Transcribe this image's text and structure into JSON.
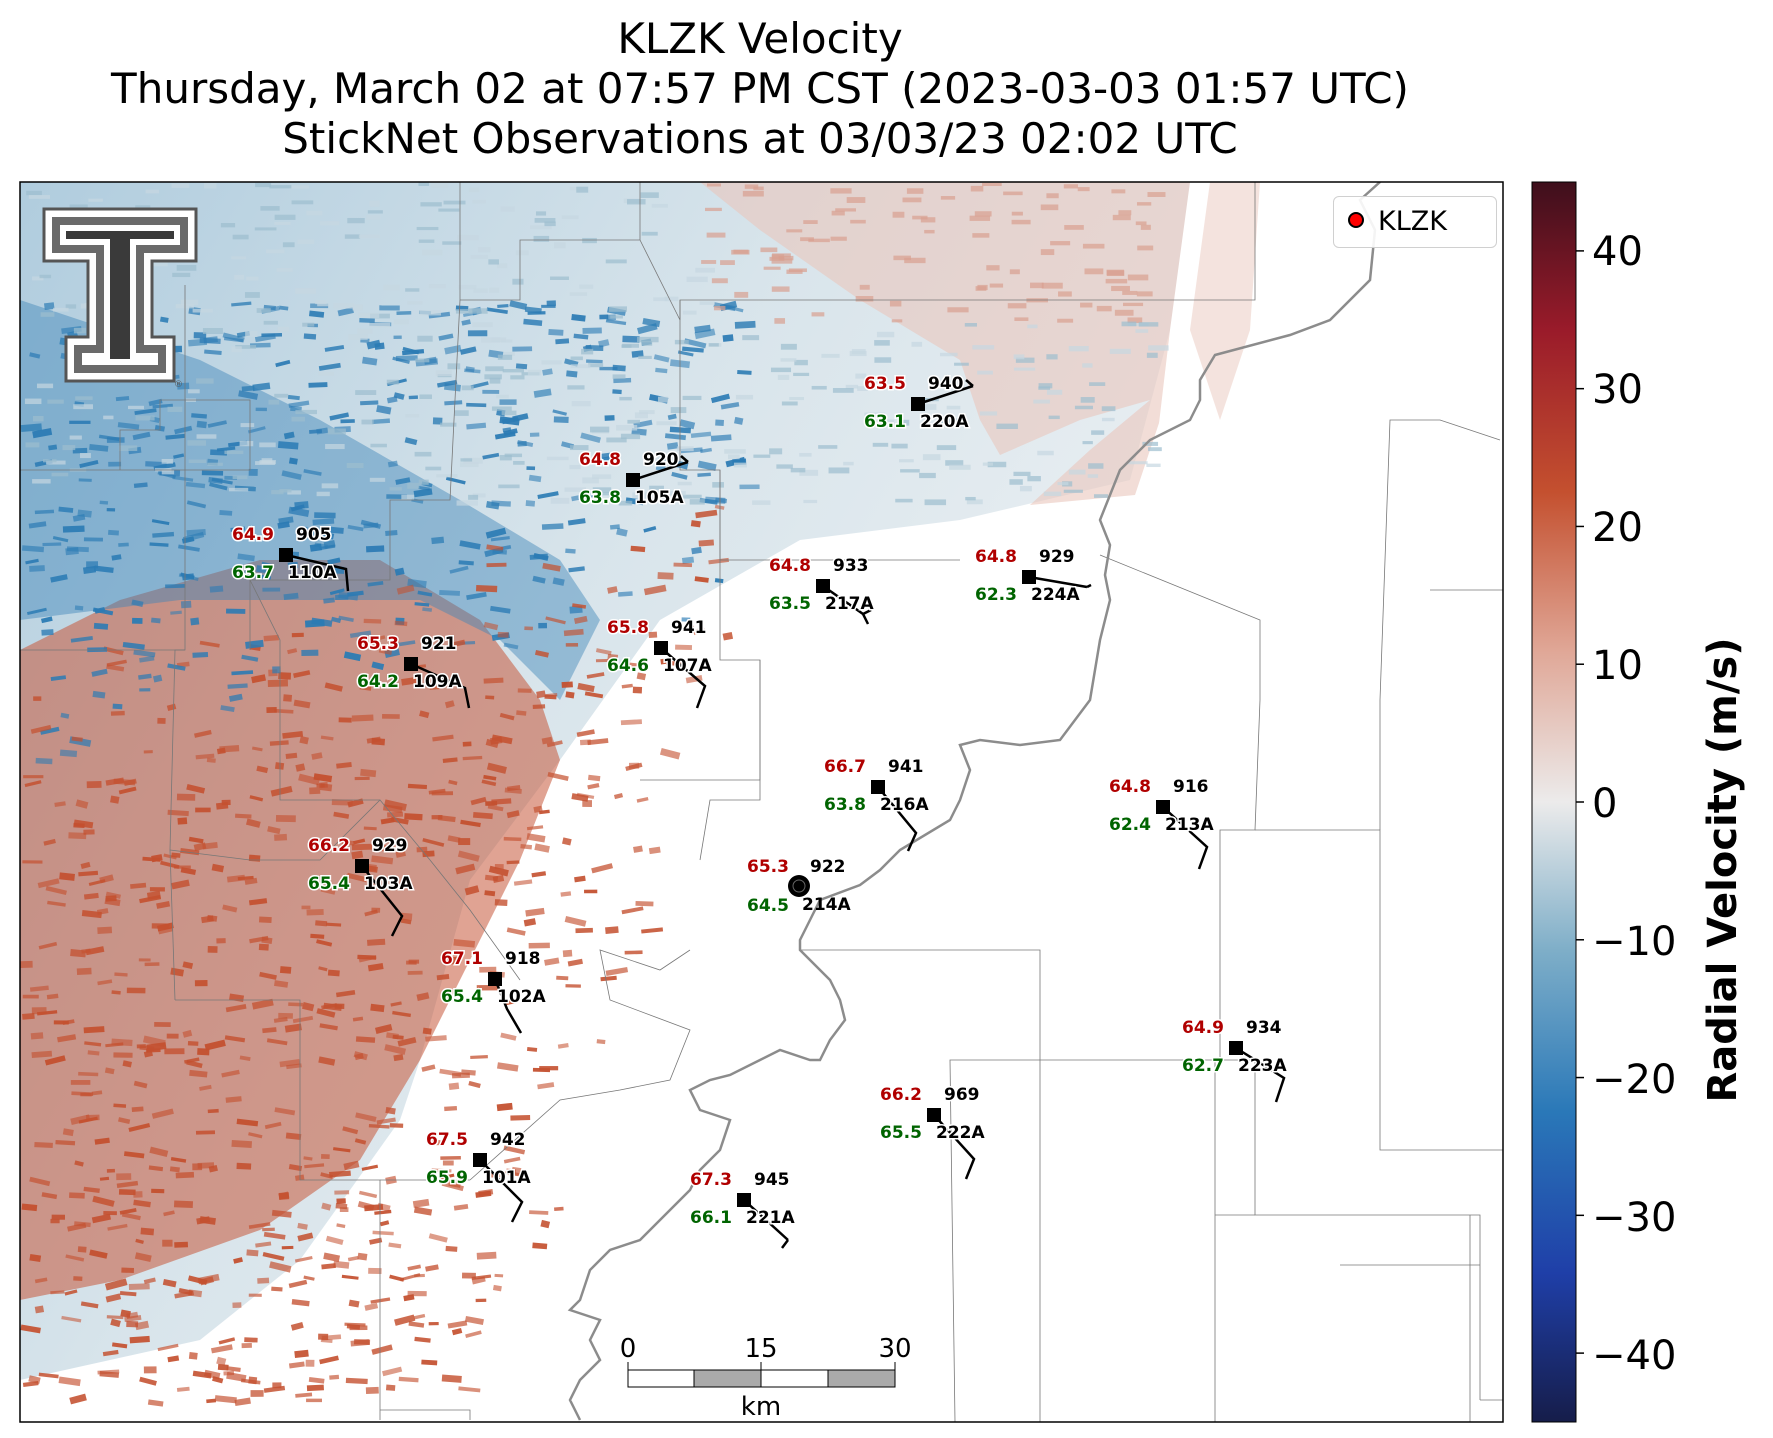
{
  "title": {
    "line1": "KLZK Velocity",
    "line2": "Thursday, March 02 at 07:57 PM CST (2023-03-03 01:57 UTC)",
    "line3": "StickNet Observations at 03/03/23 02:02 UTC"
  },
  "legend": {
    "label": "KLZK",
    "marker_color": "#ff0000"
  },
  "colorbar": {
    "title": "Radial Velocity (m/s)",
    "ticks": [
      "40",
      "30",
      "20",
      "10",
      "0",
      "−10",
      "−20",
      "−30",
      "−40"
    ],
    "range": [
      -45,
      45
    ]
  },
  "scalebar": {
    "ticks": [
      "0",
      "15",
      "30"
    ],
    "unit": "km"
  },
  "radar_site": {
    "name": "KLZK",
    "temp": "65.3",
    "pressure": "922",
    "dewpoint": "64.5",
    "id": "214A"
  },
  "stations": [
    {
      "id": "220A",
      "temp": "63.5",
      "dewpoint": "63.1",
      "pressure": "940"
    },
    {
      "id": "105A",
      "temp": "64.8",
      "dewpoint": "63.8",
      "pressure": "920"
    },
    {
      "id": "110A",
      "temp": "64.9",
      "dewpoint": "63.7",
      "pressure": "905"
    },
    {
      "id": "217A",
      "temp": "64.8",
      "dewpoint": "63.5",
      "pressure": "933"
    },
    {
      "id": "224A",
      "temp": "64.8",
      "dewpoint": "62.3",
      "pressure": "929"
    },
    {
      "id": "107A",
      "temp": "65.8",
      "dewpoint": "64.6",
      "pressure": "941"
    },
    {
      "id": "109A",
      "temp": "65.3",
      "dewpoint": "64.2",
      "pressure": "921"
    },
    {
      "id": "216A",
      "temp": "66.7",
      "dewpoint": "63.8",
      "pressure": "941"
    },
    {
      "id": "213A",
      "temp": "64.8",
      "dewpoint": "62.4",
      "pressure": "916"
    },
    {
      "id": "103A",
      "temp": "66.2",
      "dewpoint": "65.4",
      "pressure": "929"
    },
    {
      "id": "102A",
      "temp": "67.1",
      "dewpoint": "65.4",
      "pressure": "918"
    },
    {
      "id": "223A",
      "temp": "64.9",
      "dewpoint": "62.7",
      "pressure": "934"
    },
    {
      "id": "222A",
      "temp": "66.2",
      "dewpoint": "65.5",
      "pressure": "969"
    },
    {
      "id": "101A",
      "temp": "67.5",
      "dewpoint": "65.9",
      "pressure": "942"
    },
    {
      "id": "221A",
      "temp": "67.3",
      "dewpoint": "66.1",
      "pressure": "945"
    }
  ],
  "colors": {
    "temp": "#b00000",
    "dewpoint": "#006400",
    "inbound": "#2b7bb4",
    "outbound": "#c4502f"
  }
}
